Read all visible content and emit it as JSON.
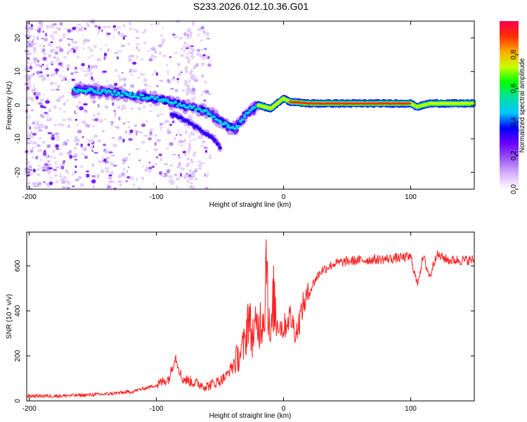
{
  "figure": {
    "title": "S233.2026.012.10.36.G01"
  },
  "chart_data": [
    {
      "type": "heatmap",
      "name": "spectrogram",
      "title": "",
      "xlabel": "Height of straight line (km)",
      "ylabel": "Frequency (Hz)",
      "xlim": [
        -202,
        150
      ],
      "ylim": [
        -25,
        25
      ],
      "xticks": [
        -200,
        -100,
        0,
        100
      ],
      "yticks": [
        -20,
        -10,
        0,
        10,
        20
      ],
      "grid": false,
      "colorbar": {
        "label": "Normalized spectral amplitude",
        "range": [
          0,
          1
        ],
        "ticks": [
          "0.0",
          "0.2",
          "0.4",
          "0.6",
          "0.8"
        ],
        "colors": [
          "#ffffff",
          "#d9b3ff",
          "#9b59f0",
          "#6a00ff",
          "#0000ff",
          "#00c8ff",
          "#00e0a0",
          "#00ff00",
          "#c8ff00",
          "#ffaa00",
          "#ff3000",
          "#ff0050"
        ]
      },
      "ridge": {
        "x": [
          -160,
          -140,
          -120,
          -100,
          -80,
          -60,
          -45,
          -38,
          -30,
          -20,
          -10,
          0,
          5,
          20,
          40,
          60,
          80,
          100,
          105,
          115,
          130,
          150
        ],
        "y": [
          4.5,
          4,
          3,
          2,
          0,
          -2,
          -6,
          -7,
          -3,
          0,
          -1,
          2,
          1,
          0.5,
          0.5,
          0.5,
          0.5,
          0.5,
          -0.5,
          0.5,
          0.5,
          0.5
        ]
      },
      "branch": {
        "x": [
          -85,
          -75,
          -65,
          -55,
          -50
        ],
        "y": [
          -3,
          -5,
          -7.5,
          -10,
          -12.5
        ]
      }
    },
    {
      "type": "line",
      "name": "snr",
      "title": "",
      "xlabel": "Height of straight line (km)",
      "ylabel": "SNR (10 * v/v)",
      "xlim": [
        -202,
        150
      ],
      "ylim": [
        0,
        750
      ],
      "xticks": [
        -200,
        -100,
        0,
        100
      ],
      "yticks": [
        0,
        200,
        400,
        600
      ],
      "grid": false,
      "color": "#ff2020",
      "series": [
        {
          "x": [
            -202,
            -180,
            -160,
            -140,
            -120,
            -110,
            -100,
            -90,
            -85,
            -80,
            -70,
            -60,
            -50,
            -45,
            -40,
            -35,
            -30,
            -28,
            -25,
            -20,
            -15,
            -13,
            -12,
            -10,
            -8,
            -5,
            0,
            5,
            10,
            15,
            20,
            25,
            30,
            40,
            50,
            60,
            80,
            100,
            105,
            110,
            115,
            120,
            130,
            150
          ],
          "values": [
            22,
            22,
            25,
            30,
            40,
            55,
            70,
            100,
            200,
            100,
            80,
            65,
            90,
            110,
            160,
            200,
            260,
            390,
            290,
            330,
            400,
            740,
            360,
            250,
            460,
            350,
            320,
            380,
            300,
            420,
            480,
            540,
            580,
            610,
            620,
            625,
            630,
            640,
            520,
            640,
            550,
            650,
            625,
            625
          ]
        }
      ]
    }
  ]
}
